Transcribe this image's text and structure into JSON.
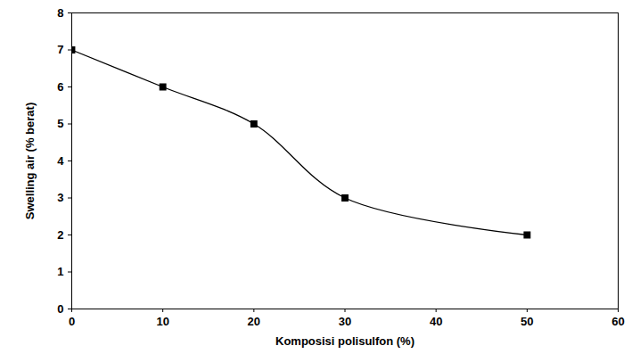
{
  "chart_data": {
    "type": "line",
    "x": [
      0,
      10,
      20,
      30,
      50
    ],
    "values": [
      7,
      6,
      5,
      3,
      2
    ],
    "color": "#000000",
    "marker": "square",
    "line_style": "solid",
    "x_label": "Komposisi polisulfon (%)",
    "y_label": "Swelling air (% berat)",
    "xlim": [
      0,
      60
    ],
    "xticks": [
      0,
      10,
      20,
      30,
      40,
      50,
      60
    ],
    "ylim": [
      0,
      8
    ],
    "yticks": [
      0,
      1,
      2,
      3,
      4,
      5,
      6,
      7,
      8
    ],
    "grid": false
  }
}
